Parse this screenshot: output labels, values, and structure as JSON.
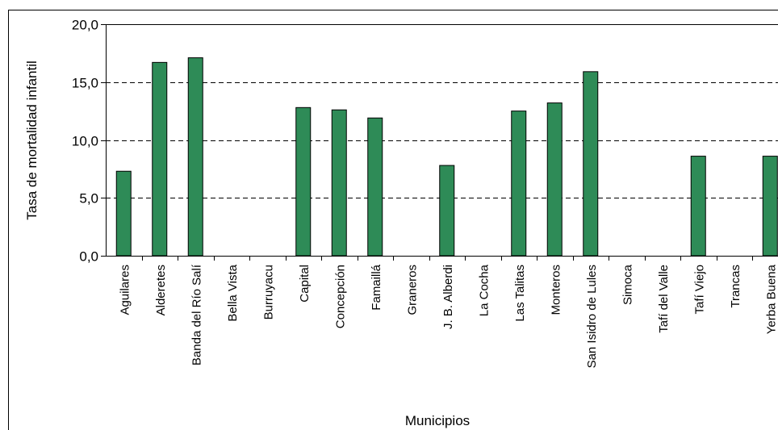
{
  "colors": {
    "bar_fill": "#2e8b57",
    "bar_stroke": "#000000",
    "gridline": "#000000",
    "background": "#ffffff"
  },
  "chart_data": {
    "type": "bar",
    "xlabel": "Municipios",
    "ylabel": "Tasa de mortalidad infantil",
    "ylim": [
      0,
      20
    ],
    "y_ticks": [
      "0,0",
      "5,0",
      "10,0",
      "15,0",
      "20,0"
    ],
    "y_tick_values": [
      0,
      5,
      10,
      15,
      20
    ],
    "grid": "horizontal dashed",
    "legend": "none",
    "categories": [
      "Aguilares",
      "Alderetes",
      "Banda del Río Salí",
      "Bella Vista",
      "Burruyacu",
      "Capital",
      "Concepción",
      "Famaillá",
      "Graneros",
      "J. B. Alberdi",
      "La Cocha",
      "Las Talitas",
      "Monteros",
      "San Isidro de Lules",
      "Simoca",
      "Tafí del Valle",
      "Tafí Viejo",
      "Trancas",
      "Yerba Buena"
    ],
    "values": [
      7.3,
      16.7,
      17.1,
      0,
      0,
      12.8,
      12.6,
      11.9,
      0,
      7.8,
      0,
      12.5,
      13.2,
      15.9,
      0,
      0,
      8.6,
      0,
      8.6
    ]
  }
}
